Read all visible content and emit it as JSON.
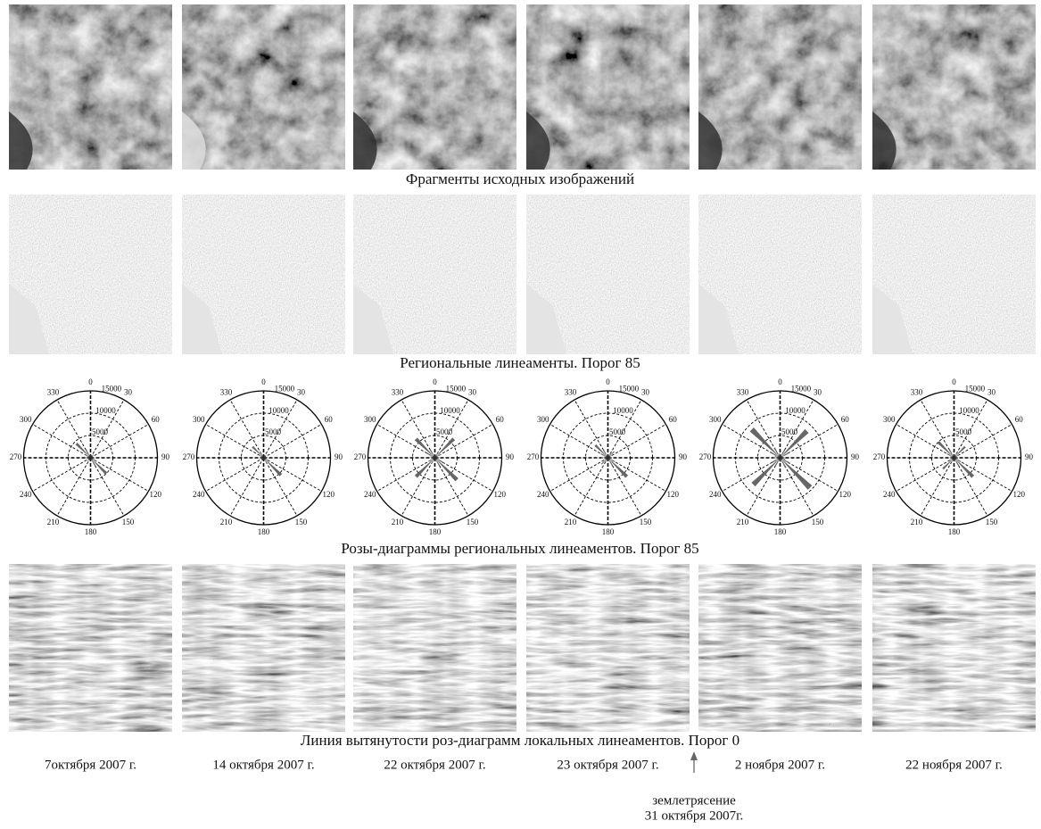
{
  "captions": [
    "Фрагменты исходных изображений",
    "Региональные линеаменты. Порог 85",
    "Розы-диаграммы региональных линеаментов. Порог 85",
    "Линия вытянутости роз-диаграмм локальных линеаментов. Порог 0"
  ],
  "dates": [
    "7октября 2007 г.",
    "14 октября 2007 г.",
    "22 октября 2007 г.",
    "23 октября 2007 г.",
    "2 ноября 2007 г.",
    "22 ноября 2007 г."
  ],
  "annotation": {
    "label": "землетрясение",
    "date": "31 октября 2007г."
  },
  "rose_diagrams": {
    "type": "rose",
    "angle_labels": [
      0,
      30,
      60,
      90,
      120,
      150,
      180,
      210,
      240,
      270,
      300,
      330
    ],
    "rticks": [
      5000,
      10000,
      15000
    ],
    "rlim": [
      0,
      15000
    ],
    "directions": [
      0,
      15,
      30,
      45,
      60,
      75,
      90,
      105,
      120,
      135,
      150,
      165,
      180,
      195,
      210,
      225,
      240,
      255,
      270,
      285,
      300,
      315,
      330,
      345
    ],
    "color": "#666666",
    "panels": [
      [
        600,
        500,
        700,
        1000,
        600,
        500,
        800,
        900,
        1500,
        5000,
        2000,
        800,
        600,
        500,
        700,
        1000,
        600,
        500,
        1200,
        900,
        1500,
        4500,
        2000,
        800
      ],
      [
        500,
        400,
        500,
        800,
        500,
        400,
        600,
        800,
        1200,
        5500,
        1500,
        700,
        500,
        400,
        500,
        800,
        500,
        400,
        700,
        800,
        1200,
        3500,
        1500,
        700
      ],
      [
        800,
        700,
        1500,
        6000,
        1500,
        700,
        1000,
        1000,
        2000,
        7000,
        2000,
        900,
        800,
        700,
        1500,
        6000,
        1500,
        700,
        1000,
        1000,
        2000,
        6000,
        2000,
        900
      ],
      [
        700,
        600,
        1000,
        2000,
        900,
        600,
        900,
        900,
        1800,
        6000,
        2000,
        800,
        700,
        600,
        1000,
        2000,
        900,
        600,
        1500,
        900,
        1800,
        4000,
        2000,
        800
      ],
      [
        900,
        800,
        2000,
        8500,
        2000,
        800,
        1200,
        1200,
        2500,
        9500,
        2500,
        1000,
        900,
        800,
        2000,
        8500,
        2000,
        800,
        1500,
        1200,
        2500,
        9000,
        2500,
        1000
      ],
      [
        700,
        600,
        1200,
        3500,
        1200,
        600,
        900,
        900,
        1800,
        6000,
        2000,
        800,
        700,
        600,
        1200,
        3500,
        1200,
        600,
        1000,
        900,
        1800,
        5000,
        2000,
        800
      ]
    ]
  }
}
